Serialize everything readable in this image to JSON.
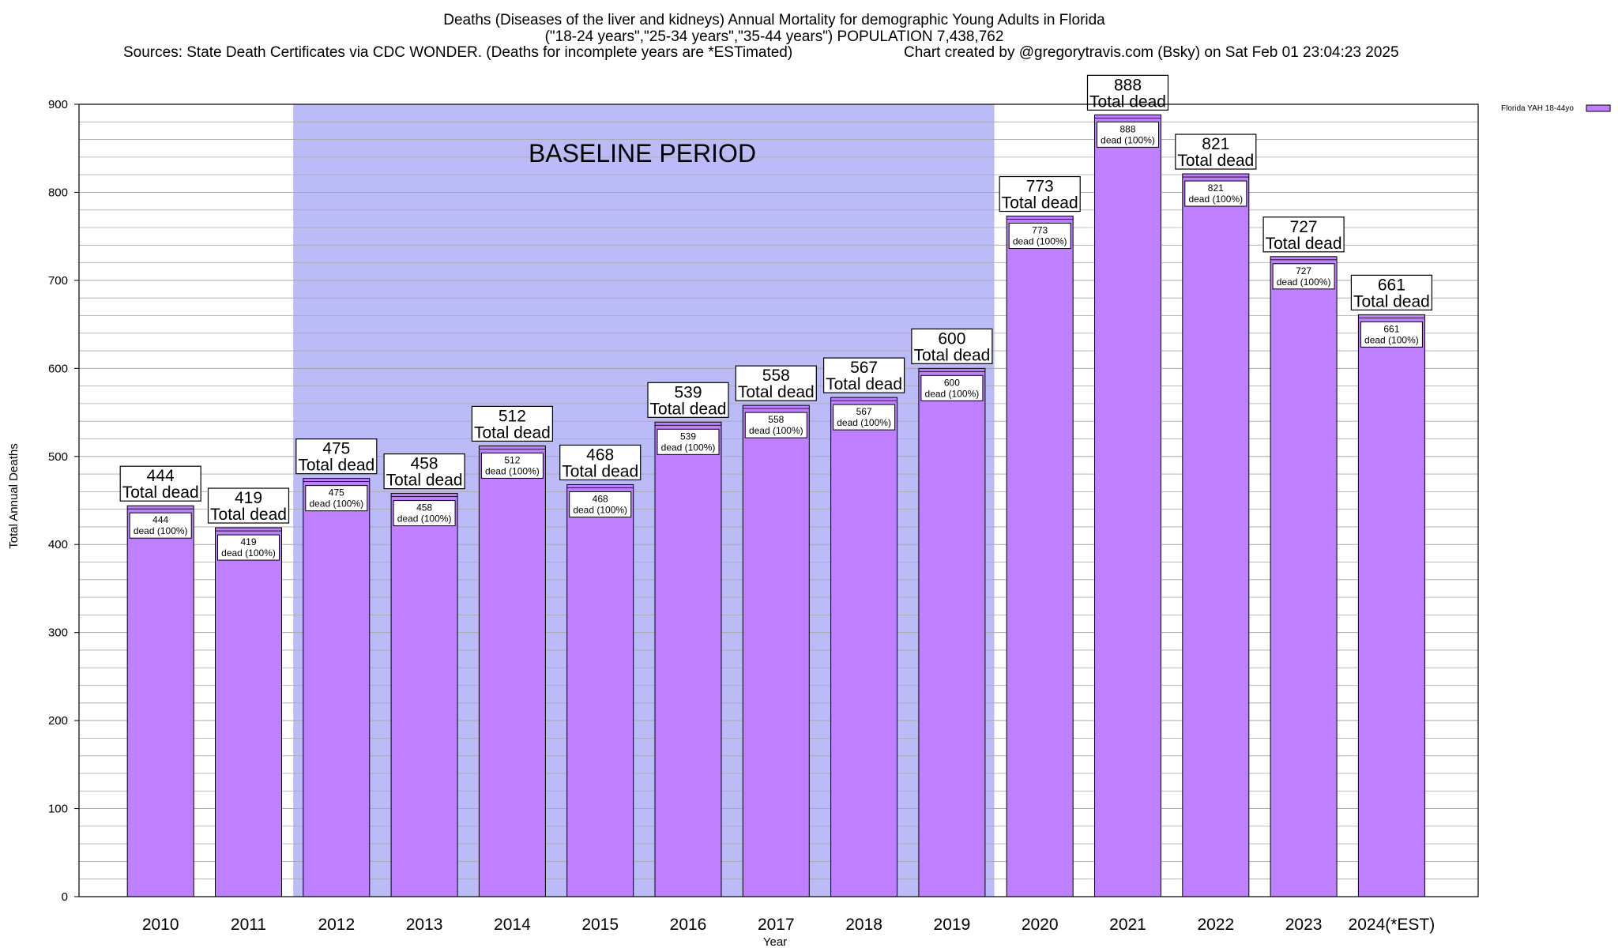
{
  "header": {
    "title_line1": "Deaths (Diseases of the liver and kidneys) Annual Mortality for demographic Young Adults in Florida",
    "title_line2": "(\"18-24 years\",\"25-34 years\",\"35-44 years\") POPULATION 7,438,762",
    "sources": "Sources: State Death Certificates via CDC WONDER. (Deaths for incomplete years are *ESTimated)",
    "credit": "Chart created by @gregorytravis.com (Bsky) on Sat Feb 01 23:04:23 2025"
  },
  "baseline": {
    "label": "BASELINE PERIOD",
    "from_category": "2012",
    "to_category": "2019",
    "color": "#bbbbf7"
  },
  "legend": {
    "label": "Florida YAH 18-44yo"
  },
  "chart_data": {
    "type": "bar",
    "title": "Deaths (Diseases of the liver and kidneys) Annual Mortality for demographic Young Adults in Florida",
    "xlabel": "Year",
    "ylabel": "Total Annual Deaths",
    "ylim": [
      0,
      900
    ],
    "yticks": [
      0,
      100,
      200,
      300,
      400,
      500,
      600,
      700,
      800,
      900
    ],
    "grid": true,
    "legend_position": "top-right",
    "categories": [
      "2010",
      "2011",
      "2012",
      "2013",
      "2014",
      "2015",
      "2016",
      "2017",
      "2018",
      "2019",
      "2020",
      "2021",
      "2022",
      "2023",
      "2024(*EST)"
    ],
    "series": [
      {
        "name": "Florida YAH 18-44yo",
        "color": "#bf80ff",
        "values": [
          444,
          419,
          475,
          458,
          512,
          468,
          539,
          558,
          567,
          600,
          773,
          888,
          821,
          727,
          661
        ]
      }
    ],
    "total_label_suffix": "Total dead",
    "inner_label_suffix": "dead (100%)"
  }
}
